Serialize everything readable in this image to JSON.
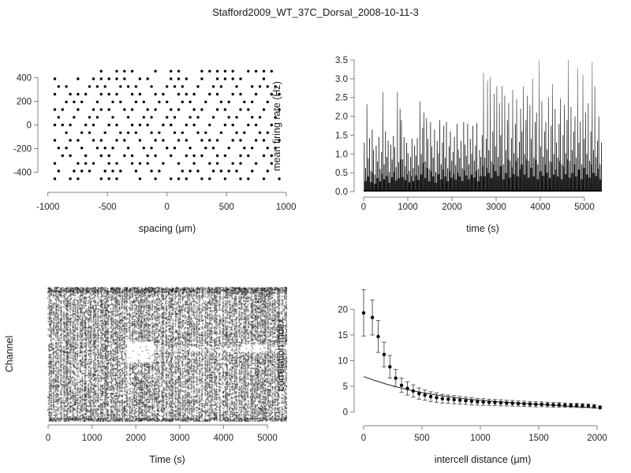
{
  "title": "Stafford2009_WT_37C_Dorsal_2008-10-11-3",
  "chart_data": {
    "positions": {
      "type": "scatter",
      "title": "",
      "xlabel": "spacing (μm)",
      "ylabel": "",
      "xticks": [
        "-1000",
        "-500",
        "0",
        "500",
        "1000"
      ],
      "yticks": [
        "-400",
        "-200",
        "0",
        "200",
        "400"
      ],
      "xlim": [
        -1000,
        1000
      ],
      "ylim": [
        -480,
        480
      ],
      "marker": "filled-dot",
      "rows": [
        {
          "y": 455,
          "xs": [
            -552,
            -422,
            -357,
            -292,
            -97,
            33,
            98,
            293,
            358,
            423,
            488,
            553,
            683,
            748,
            813,
            878
          ]
        },
        {
          "y": 390,
          "xs": [
            -942,
            -747,
            -617,
            -552,
            -487,
            -422,
            -357,
            -227,
            -162,
            33,
            98,
            163,
            293,
            423,
            488,
            553,
            618,
            813
          ]
        },
        {
          "y": 325,
          "xs": [
            -910,
            -845,
            -650,
            -585,
            -520,
            -390,
            -325,
            -260,
            -130,
            0,
            65,
            130,
            260,
            390,
            455,
            585,
            715,
            780,
            845,
            910
          ]
        },
        {
          "y": 260,
          "xs": [
            -942,
            -812,
            -747,
            -682,
            -552,
            -487,
            -422,
            -292,
            -227,
            -97,
            -32,
            98,
            163,
            228,
            358,
            423,
            553,
            618,
            748,
            878,
            943
          ]
        },
        {
          "y": 195,
          "xs": [
            -845,
            -780,
            -715,
            -585,
            -455,
            -390,
            -260,
            -195,
            -65,
            0,
            130,
            195,
            325,
            455,
            520,
            650,
            715,
            845
          ]
        },
        {
          "y": 130,
          "xs": [
            -942,
            -877,
            -747,
            -617,
            -552,
            -487,
            -357,
            -292,
            -162,
            -97,
            33,
            98,
            228,
            293,
            423,
            488,
            618,
            683,
            813,
            943
          ]
        },
        {
          "y": 65,
          "xs": [
            -910,
            -780,
            -650,
            -585,
            -455,
            -325,
            -195,
            -130,
            0,
            65,
            195,
            260,
            390,
            520,
            585,
            715,
            780,
            910
          ]
        },
        {
          "y": 0,
          "xs": [
            -942,
            -877,
            -812,
            -682,
            -617,
            -487,
            -422,
            -292,
            -227,
            -162,
            -32,
            33,
            163,
            228,
            358,
            488,
            553,
            683,
            748,
            878
          ]
        },
        {
          "y": -65,
          "xs": [
            -845,
            -715,
            -650,
            -520,
            -390,
            -325,
            -260,
            -130,
            -65,
            65,
            130,
            260,
            325,
            455,
            585,
            650,
            780,
            845
          ]
        },
        {
          "y": -130,
          "xs": [
            -942,
            -812,
            -747,
            -617,
            -552,
            -422,
            -357,
            -227,
            -97,
            -32,
            98,
            163,
            293,
            358,
            423,
            553,
            618,
            748,
            813,
            943
          ]
        },
        {
          "y": -195,
          "xs": [
            -910,
            -845,
            -715,
            -585,
            -520,
            -455,
            -325,
            -195,
            -130,
            0,
            65,
            195,
            325,
            390,
            520,
            650,
            715,
            845,
            910
          ]
        },
        {
          "y": -260,
          "xs": [
            -877,
            -812,
            -682,
            -552,
            -487,
            -357,
            -292,
            -162,
            -97,
            33,
            163,
            228,
            293,
            423,
            488,
            618,
            683,
            813,
            878
          ]
        },
        {
          "y": -325,
          "xs": [
            -942,
            -747,
            -682,
            -617,
            -487,
            -422,
            -292,
            -227,
            -162,
            -32,
            98,
            228,
            358,
            423,
            553,
            618,
            748,
            878
          ]
        },
        {
          "y": -390,
          "xs": [
            -910,
            -780,
            -715,
            -650,
            -520,
            -455,
            -390,
            -260,
            -130,
            -65,
            130,
            195,
            260,
            390,
            455,
            520,
            585,
            715,
            845
          ]
        },
        {
          "y": -455,
          "xs": [
            -942,
            -812,
            -747,
            -552,
            -487,
            -422,
            -227,
            -97,
            33,
            98,
            163,
            293,
            358,
            488,
            618,
            683,
            813,
            943
          ]
        }
      ]
    },
    "firing_rate": {
      "type": "line",
      "title": "",
      "xlabel": "time (s)",
      "ylabel": "mean firing rate (Hz)",
      "xticks": [
        "0",
        "1000",
        "2000",
        "3000",
        "4000",
        "5000"
      ],
      "yticks": [
        "0.0",
        "0.5",
        "1.0",
        "1.5",
        "2.0",
        "2.5",
        "3.0",
        "3.5"
      ],
      "xlim": [
        0,
        5400
      ],
      "ylim": [
        0,
        3.5
      ],
      "t0": 15,
      "dt": 30,
      "heights": [
        1.3,
        0.62,
        2.32,
        0.88,
        1.42,
        0.55,
        1.65,
        1.1,
        0.45,
        1.22,
        0.8,
        1.45,
        0.6,
        1.05,
        2.65,
        0.72,
        1.6,
        0.92,
        1.35,
        0.52,
        1.25,
        0.85,
        1.48,
        1.18,
        0.65,
        2.65,
        0.78,
        2.2,
        1.9,
        0.85,
        1.45,
        0.68,
        1.3,
        1.02,
        0.55,
        0.92,
        1.4,
        0.62,
        1.22,
        0.95,
        1.42,
        0.7,
        2.4,
        1.0,
        1.7,
        2.1,
        0.8,
        1.95,
        1.4,
        0.6,
        1.85,
        1.2,
        0.9,
        1.65,
        0.52,
        1.35,
        1.02,
        1.9,
        0.72,
        1.3,
        1.75,
        0.9,
        1.85,
        0.62,
        1.2,
        1.6,
        0.82,
        1.05,
        1.45,
        0.7,
        1.8,
        1.12,
        0.9,
        1.35,
        0.62,
        1.85,
        1.25,
        0.95,
        1.8,
        0.72,
        1.4,
        1.0,
        1.75,
        0.82,
        1.22,
        1.82,
        0.6,
        1.1,
        0.92,
        1.5,
        3.15,
        0.9,
        1.4,
        2.95,
        1.1,
        3.05,
        0.8,
        1.6,
        2.6,
        1.2,
        2.8,
        0.92,
        2.35,
        1.5,
        2.8,
        0.72,
        2.55,
        1.1,
        1.9,
        2.35,
        0.82,
        1.42,
        2.7,
        1.02,
        1.8,
        2.45,
        0.9,
        1.32,
        2.2,
        1.6,
        2.8,
        1.0,
        1.9,
        2.55,
        0.82,
        2.3,
        1.4,
        3.0,
        0.9,
        1.85,
        2.1,
        0.72,
        3.48,
        1.2,
        2.4,
        0.92,
        1.6,
        1.85,
        1.12,
        2.5,
        0.8,
        1.75,
        2.85,
        1.0,
        2.2,
        1.3,
        0.9,
        1.8,
        2.48,
        0.72,
        1.5,
        2.3,
        1.02,
        1.9,
        3.5,
        0.82,
        2.25,
        1.1,
        1.6,
        2.0,
        0.9,
        3.3,
        1.3,
        1.85,
        0.72,
        3.1,
        1.4,
        2.1,
        1.0,
        2.35,
        0.82,
        1.6,
        3.45,
        1.1,
        2.8,
        0.92,
        1.35,
        2.0,
        0.72,
        1.3
      ]
    },
    "raster": {
      "type": "raster",
      "title": "",
      "xlabel": "Time (s)",
      "ylabel": "Channel",
      "xticks": [
        "0",
        "1000",
        "2000",
        "3000",
        "4000",
        "5000"
      ],
      "xlim": [
        0,
        5400
      ],
      "channels": 64,
      "duration": 5400,
      "seed": 11,
      "burst_min_interval": 34,
      "burst_jitter": 42,
      "background_dots": 4200,
      "gaps": [
        {
          "t": [
            1780,
            2380
          ],
          "ch": [
            28,
            38
          ],
          "f": 0.07
        },
        {
          "t": [
            2380,
            5400
          ],
          "ch": [
            33,
            36
          ],
          "f": 0.55
        },
        {
          "t": [
            4350,
            4950
          ],
          "ch": [
            33,
            37
          ],
          "f": 0.18
        },
        {
          "t": [
            550,
            950
          ],
          "ch": [
            20,
            25
          ],
          "f": 0.5
        }
      ]
    },
    "correlation": {
      "type": "scatter-errorbar",
      "title": "",
      "xlabel": "intercell distance (μm)",
      "ylabel": "correlation index",
      "xticks": [
        "0",
        "500",
        "1000",
        "1500",
        "2000"
      ],
      "yticks": [
        "0",
        "5",
        "10",
        "15",
        "20"
      ],
      "xlim": [
        0,
        2050
      ],
      "ylim": [
        0,
        24.5
      ],
      "x": [
        0,
        75,
        125,
        175,
        225,
        275,
        325,
        375,
        425,
        475,
        525,
        575,
        625,
        675,
        725,
        775,
        825,
        875,
        925,
        975,
        1025,
        1075,
        1125,
        1175,
        1225,
        1275,
        1325,
        1375,
        1425,
        1475,
        1525,
        1575,
        1625,
        1675,
        1725,
        1775,
        1825,
        1875,
        1925,
        1975,
        2025
      ],
      "y": [
        19.3,
        18.4,
        14.7,
        11.2,
        8.8,
        6.6,
        5.2,
        4.6,
        4.1,
        3.6,
        3.3,
        3.0,
        2.8,
        2.6,
        2.5,
        2.4,
        2.3,
        2.2,
        2.1,
        2.0,
        1.95,
        1.9,
        1.85,
        1.8,
        1.75,
        1.7,
        1.65,
        1.6,
        1.55,
        1.5,
        1.5,
        1.45,
        1.4,
        1.4,
        1.35,
        1.3,
        1.3,
        1.25,
        1.2,
        1.1,
        0.9
      ],
      "err": [
        4.5,
        3.4,
        3.1,
        2.4,
        2.2,
        1.7,
        1.4,
        1.3,
        1.2,
        1.1,
        1.0,
        0.95,
        0.9,
        0.85,
        0.8,
        0.8,
        0.75,
        0.7,
        0.7,
        0.65,
        0.65,
        0.6,
        0.6,
        0.6,
        0.55,
        0.55,
        0.5,
        0.5,
        0.5,
        0.5,
        0.45,
        0.45,
        0.45,
        0.45,
        0.4,
        0.4,
        0.4,
        0.4,
        0.35,
        0.35,
        0.3
      ],
      "fit": {
        "x": [
          0,
          100,
          200,
          300,
          400,
          500,
          600,
          700,
          800,
          900,
          1000,
          1100,
          1200,
          1300,
          1400,
          1500,
          1600,
          1700,
          1800,
          1900,
          2000
        ],
        "y": [
          6.9,
          6.1,
          5.4,
          4.8,
          4.25,
          3.8,
          3.4,
          3.05,
          2.75,
          2.5,
          2.3,
          2.1,
          1.95,
          1.8,
          1.65,
          1.5,
          1.35,
          1.2,
          1.05,
          0.9,
          0.8
        ]
      }
    }
  },
  "colors": {
    "point": "#000000",
    "axis": "#808080",
    "text": "#262626",
    "errorbar": "#5a5a5a",
    "fit_line": "#222222"
  }
}
